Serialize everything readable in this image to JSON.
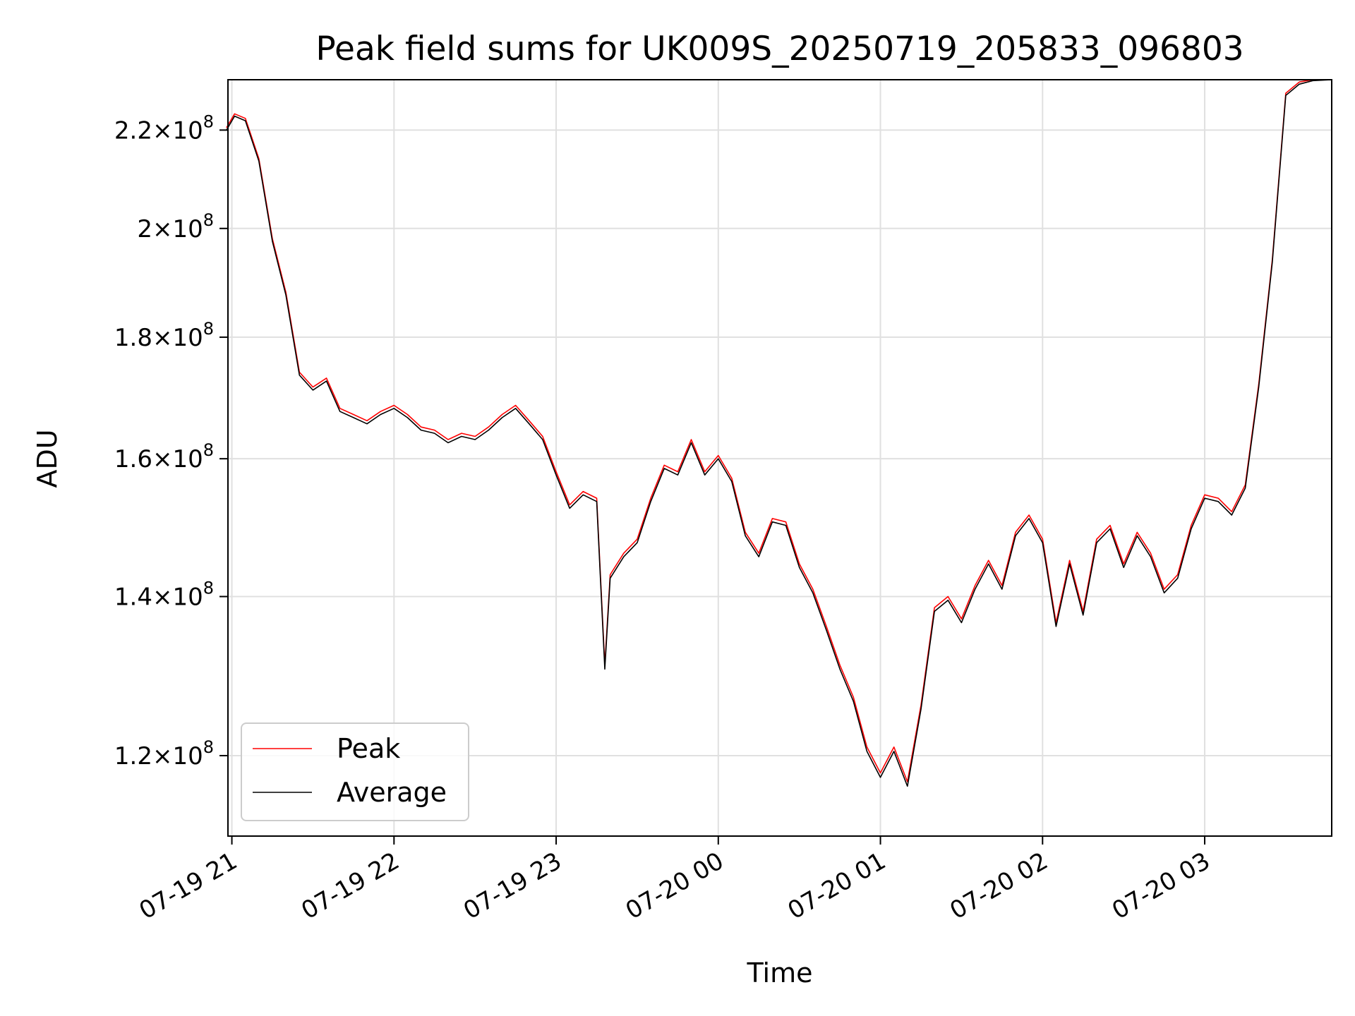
{
  "chart_data": {
    "type": "line",
    "title": "Peak field sums for UK009S_20250719_205833_096803",
    "xlabel": "Time",
    "ylabel": "ADU",
    "x_axis_type": "datetime",
    "xlim": [
      "2025-07-19 20:58:33",
      "2025-07-20 03:47:00"
    ],
    "ylim": [
      111000000.0,
      231000000.0
    ],
    "y_scale": "log",
    "grid": true,
    "legend": "lower-left",
    "x_ticks": [
      {
        "value": "2025-07-19 21:00",
        "label": "07-19 21"
      },
      {
        "value": "2025-07-19 22:00",
        "label": "07-19 22"
      },
      {
        "value": "2025-07-19 23:00",
        "label": "07-19 23"
      },
      {
        "value": "2025-07-20 00:00",
        "label": "07-20 00"
      },
      {
        "value": "2025-07-20 01:00",
        "label": "07-20 01"
      },
      {
        "value": "2025-07-20 02:00",
        "label": "07-20 02"
      },
      {
        "value": "2025-07-20 03:00",
        "label": "07-20 03"
      }
    ],
    "y_ticks": [
      {
        "value": 120000000.0,
        "mantissa": "1.2",
        "base": "10",
        "exp": "8"
      },
      {
        "value": 140000000.0,
        "mantissa": "1.4",
        "base": "10",
        "exp": "8"
      },
      {
        "value": 160000000.0,
        "mantissa": "1.6",
        "base": "10",
        "exp": "8"
      },
      {
        "value": 180000000.0,
        "mantissa": "1.8",
        "base": "10",
        "exp": "8"
      },
      {
        "value": 200000000.0,
        "mantissa": "2",
        "base": "10",
        "exp": "8"
      },
      {
        "value": 220000000.0,
        "mantissa": "2.2",
        "base": "10",
        "exp": "8"
      }
    ],
    "series": [
      {
        "name": "Peak",
        "color": "#ff0000",
        "x": [
          "2025-07-19 20:58",
          "2025-07-19 21:01",
          "2025-07-19 21:05",
          "2025-07-19 21:10",
          "2025-07-19 21:15",
          "2025-07-19 21:20",
          "2025-07-19 21:25",
          "2025-07-19 21:30",
          "2025-07-19 21:35",
          "2025-07-19 21:40",
          "2025-07-19 21:45",
          "2025-07-19 21:50",
          "2025-07-19 21:55",
          "2025-07-19 22:00",
          "2025-07-19 22:05",
          "2025-07-19 22:10",
          "2025-07-19 22:15",
          "2025-07-19 22:20",
          "2025-07-19 22:25",
          "2025-07-19 22:30",
          "2025-07-19 22:35",
          "2025-07-19 22:40",
          "2025-07-19 22:45",
          "2025-07-19 22:50",
          "2025-07-19 22:55",
          "2025-07-19 23:00",
          "2025-07-19 23:05",
          "2025-07-19 23:10",
          "2025-07-19 23:15",
          "2025-07-19 23:18",
          "2025-07-19 23:20",
          "2025-07-19 23:25",
          "2025-07-19 23:30",
          "2025-07-19 23:35",
          "2025-07-19 23:40",
          "2025-07-19 23:45",
          "2025-07-19 23:50",
          "2025-07-19 23:55",
          "2025-07-20 00:00",
          "2025-07-20 00:05",
          "2025-07-20 00:10",
          "2025-07-20 00:15",
          "2025-07-20 00:20",
          "2025-07-20 00:25",
          "2025-07-20 00:30",
          "2025-07-20 00:35",
          "2025-07-20 00:40",
          "2025-07-20 00:45",
          "2025-07-20 00:50",
          "2025-07-20 00:55",
          "2025-07-20 01:00",
          "2025-07-20 01:05",
          "2025-07-20 01:10",
          "2025-07-20 01:15",
          "2025-07-20 01:20",
          "2025-07-20 01:25",
          "2025-07-20 01:30",
          "2025-07-20 01:35",
          "2025-07-20 01:40",
          "2025-07-20 01:45",
          "2025-07-20 01:50",
          "2025-07-20 01:55",
          "2025-07-20 02:00",
          "2025-07-20 02:05",
          "2025-07-20 02:10",
          "2025-07-20 02:15",
          "2025-07-20 02:20",
          "2025-07-20 02:25",
          "2025-07-20 02:30",
          "2025-07-20 02:35",
          "2025-07-20 02:40",
          "2025-07-20 02:45",
          "2025-07-20 02:50",
          "2025-07-20 02:55",
          "2025-07-20 03:00",
          "2025-07-20 03:05",
          "2025-07-20 03:10",
          "2025-07-20 03:15",
          "2025-07-20 03:20",
          "2025-07-20 03:25",
          "2025-07-20 03:30",
          "2025-07-20 03:35",
          "2025-07-20 03:40",
          "2025-07-20 03:47"
        ],
        "values": [
          220500000.0,
          223500000.0,
          222500000.0,
          214000000.0,
          198000000.0,
          188000000.0,
          174000000.0,
          171500000.0,
          173000000.0,
          168000000.0,
          167000000.0,
          166000000.0,
          167500000.0,
          168500000.0,
          167000000.0,
          165000000.0,
          164500000.0,
          163000000.0,
          164000000.0,
          163500000.0,
          165000000.0,
          167000000.0,
          168500000.0,
          166000000.0,
          163500000.0,
          158000000.0,
          153000000.0,
          155000000.0,
          154000000.0,
          131000000.0,
          143000000.0,
          146000000.0,
          148000000.0,
          154000000.0,
          159000000.0,
          158000000.0,
          163000000.0,
          158000000.0,
          160500000.0,
          157000000.0,
          149000000.0,
          146000000.0,
          151000000.0,
          150500000.0,
          144500000.0,
          141000000.0,
          136000000.0,
          131000000.0,
          127000000.0,
          121000000.0,
          118000000.0,
          121000000.0,
          117000000.0,
          126000000.0,
          138500000.0,
          140000000.0,
          137000000.0,
          141500000.0,
          145000000.0,
          141500000.0,
          149000000.0,
          151500000.0,
          148000000.0,
          136500000.0,
          145000000.0,
          138000000.0,
          148000000.0,
          150000000.0,
          144500000.0,
          149000000.0,
          146000000.0,
          141000000.0,
          143000000.0,
          150000000.0,
          154500000.0,
          154000000.0,
          152000000.0,
          156000000.0,
          172000000.0,
          194000000.0,
          228000000.0,
          230500000.0,
          231000000.0,
          231000000.0
        ]
      },
      {
        "name": "Average",
        "color": "#000000",
        "x": [
          "2025-07-19 20:58",
          "2025-07-19 21:01",
          "2025-07-19 21:05",
          "2025-07-19 21:10",
          "2025-07-19 21:15",
          "2025-07-19 21:20",
          "2025-07-19 21:25",
          "2025-07-19 21:30",
          "2025-07-19 21:35",
          "2025-07-19 21:40",
          "2025-07-19 21:45",
          "2025-07-19 21:50",
          "2025-07-19 21:55",
          "2025-07-19 22:00",
          "2025-07-19 22:05",
          "2025-07-19 22:10",
          "2025-07-19 22:15",
          "2025-07-19 22:20",
          "2025-07-19 22:25",
          "2025-07-19 22:30",
          "2025-07-19 22:35",
          "2025-07-19 22:40",
          "2025-07-19 22:45",
          "2025-07-19 22:50",
          "2025-07-19 22:55",
          "2025-07-19 23:00",
          "2025-07-19 23:05",
          "2025-07-19 23:10",
          "2025-07-19 23:15",
          "2025-07-19 23:18",
          "2025-07-19 23:20",
          "2025-07-19 23:25",
          "2025-07-19 23:30",
          "2025-07-19 23:35",
          "2025-07-19 23:40",
          "2025-07-19 23:45",
          "2025-07-19 23:50",
          "2025-07-19 23:55",
          "2025-07-20 00:00",
          "2025-07-20 00:05",
          "2025-07-20 00:10",
          "2025-07-20 00:15",
          "2025-07-20 00:20",
          "2025-07-20 00:25",
          "2025-07-20 00:30",
          "2025-07-20 00:35",
          "2025-07-20 00:40",
          "2025-07-20 00:45",
          "2025-07-20 00:50",
          "2025-07-20 00:55",
          "2025-07-20 01:00",
          "2025-07-20 01:05",
          "2025-07-20 01:10",
          "2025-07-20 01:15",
          "2025-07-20 01:20",
          "2025-07-20 01:25",
          "2025-07-20 01:30",
          "2025-07-20 01:35",
          "2025-07-20 01:40",
          "2025-07-20 01:45",
          "2025-07-20 01:50",
          "2025-07-20 01:55",
          "2025-07-20 02:00",
          "2025-07-20 02:05",
          "2025-07-20 02:10",
          "2025-07-20 02:15",
          "2025-07-20 02:20",
          "2025-07-20 02:25",
          "2025-07-20 02:30",
          "2025-07-20 02:35",
          "2025-07-20 02:40",
          "2025-07-20 02:45",
          "2025-07-20 02:50",
          "2025-07-20 02:55",
          "2025-07-20 03:00",
          "2025-07-20 03:05",
          "2025-07-20 03:10",
          "2025-07-20 03:15",
          "2025-07-20 03:20",
          "2025-07-20 03:25",
          "2025-07-20 03:30",
          "2025-07-20 03:35",
          "2025-07-20 03:40",
          "2025-07-20 03:47"
        ],
        "values": [
          220000000.0,
          223000000.0,
          222000000.0,
          213500000.0,
          197500000.0,
          187500000.0,
          173500000.0,
          171000000.0,
          172500000.0,
          167500000.0,
          166500000.0,
          165500000.0,
          167000000.0,
          168000000.0,
          166500000.0,
          164500000.0,
          164000000.0,
          162500000.0,
          163500000.0,
          163000000.0,
          164500000.0,
          166500000.0,
          168000000.0,
          165500000.0,
          163000000.0,
          157500000.0,
          152500000.0,
          154500000.0,
          153500000.0,
          130500000.0,
          142500000.0,
          145500000.0,
          147500000.0,
          153500000.0,
          158500000.0,
          157500000.0,
          162500000.0,
          157500000.0,
          160000000.0,
          156500000.0,
          148500000.0,
          145500000.0,
          150500000.0,
          150000000.0,
          144000000.0,
          140500000.0,
          135500000.0,
          130500000.0,
          126500000.0,
          120500000.0,
          117500000.0,
          120500000.0,
          116500000.0,
          125500000.0,
          138000000.0,
          139500000.0,
          136500000.0,
          141000000.0,
          144500000.0,
          141000000.0,
          148500000.0,
          151000000.0,
          147500000.0,
          136000000.0,
          144500000.0,
          137500000.0,
          147500000.0,
          149500000.0,
          144000000.0,
          148500000.0,
          145500000.0,
          140500000.0,
          142500000.0,
          149500000.0,
          154000000.0,
          153500000.0,
          151500000.0,
          155500000.0,
          171500000.0,
          193500000.0,
          227500000.0,
          230000000.0,
          230800000.0,
          231000000.0
        ]
      }
    ]
  }
}
